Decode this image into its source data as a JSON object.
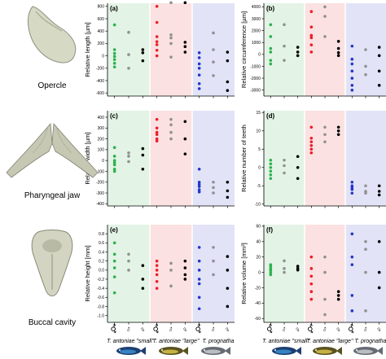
{
  "figure": {
    "bone_labels": [
      "Opercle",
      "Pharyngeal jaw",
      "Buccal cavity"
    ],
    "group_labels": [
      "T. antoniae \"small\"",
      "T. antoniae \"large\"",
      "T. prognatha"
    ],
    "column_symbols": [
      "⚥",
      "♂",
      "♀",
      "⚥",
      "♂",
      "♀",
      "⚥",
      "♂",
      "♀"
    ]
  },
  "colors": {
    "small_bg": "#e3f3e6",
    "large_bg": "#fbe1e1",
    "prog_bg": "#e2e3f6",
    "fg": "#000000",
    "immature": "#2bb24c",
    "male": "#909090",
    "female": "#000000",
    "large_immature": "#e8202b",
    "prog_immature": "#2436c8"
  },
  "chart_data": [
    {
      "id": "a",
      "type": "scatter",
      "panel_label": "(a)",
      "ylabel": "Relative length [µm]",
      "ylim": [
        -650,
        850
      ],
      "yticks": [
        "800",
        "600",
        "400",
        "200",
        "0",
        "-200",
        "-400",
        "-600"
      ],
      "series": [
        {
          "column": 1,
          "values": [
            500,
            100,
            40,
            -10,
            -60,
            -120,
            -180
          ]
        },
        {
          "column": 2,
          "values": [
            380,
            20,
            -200
          ]
        },
        {
          "column": 3,
          "values": [
            100,
            50,
            -80
          ]
        },
        {
          "column": 4,
          "values": [
            800,
            540,
            310,
            230,
            180,
            90,
            0
          ]
        },
        {
          "column": 5,
          "values": [
            860,
            340,
            290,
            200,
            -20
          ]
        },
        {
          "column": 6,
          "values": [
            860,
            220,
            150,
            60
          ]
        },
        {
          "column": 7,
          "values": [
            50,
            -30,
            -130,
            -200,
            -310,
            -450,
            -530
          ]
        },
        {
          "column": 8,
          "values": [
            370,
            100,
            -100,
            -320
          ]
        },
        {
          "column": 9,
          "values": [
            60,
            -80,
            -420,
            -560
          ]
        }
      ]
    },
    {
      "id": "b",
      "type": "scatter",
      "panel_label": "(b)",
      "ylabel": "Relative circumference [µm]",
      "ylim": [
        -3500,
        4300
      ],
      "yticks": [
        "4000",
        "3000",
        "2000",
        "1000",
        "0",
        "-1000",
        "-2000",
        "-3000"
      ],
      "series": [
        {
          "column": 1,
          "values": [
            2500,
            1500,
            500,
            200,
            -500,
            -800
          ]
        },
        {
          "column": 2,
          "values": [
            2500,
            700,
            -500
          ]
        },
        {
          "column": 3,
          "values": [
            600,
            200,
            -100
          ]
        },
        {
          "column": 4,
          "values": [
            3600,
            2300,
            1600,
            1400,
            800,
            200
          ]
        },
        {
          "column": 5,
          "values": [
            4000,
            3200,
            1500
          ]
        },
        {
          "column": 6,
          "values": [
            1100,
            500,
            150,
            -100
          ]
        },
        {
          "column": 7,
          "values": [
            700,
            -400,
            -800,
            -1400,
            -2000,
            -2600,
            -3000
          ]
        },
        {
          "column": 8,
          "values": [
            400,
            -1000,
            -1700
          ]
        },
        {
          "column": 9,
          "values": [
            600,
            -100,
            -1400,
            -2600
          ]
        }
      ]
    },
    {
      "id": "c",
      "type": "scatter",
      "panel_label": "(c)",
      "ylabel": "Relative width [µm]",
      "ylim": [
        -420,
        460
      ],
      "yticks": [
        "400",
        "300",
        "200",
        "100",
        "0",
        "-100",
        "-200",
        "-300",
        "-400"
      ],
      "series": [
        {
          "column": 1,
          "values": [
            120,
            40,
            0,
            -20,
            -40,
            -80,
            -100
          ]
        },
        {
          "column": 2,
          "values": [
            70,
            40,
            -10
          ]
        },
        {
          "column": 3,
          "values": [
            110,
            50,
            -80
          ]
        },
        {
          "column": 4,
          "values": [
            380,
            300,
            260,
            240,
            200,
            180
          ]
        },
        {
          "column": 5,
          "values": [
            380,
            330,
            260,
            200
          ]
        },
        {
          "column": 6,
          "values": [
            360,
            200,
            60
          ]
        },
        {
          "column": 7,
          "values": [
            -80,
            -200,
            -220,
            -240,
            -270,
            -290
          ]
        },
        {
          "column": 8,
          "values": [
            -200,
            -250,
            -300
          ]
        },
        {
          "column": 9,
          "values": [
            -200,
            -280,
            -340
          ]
        }
      ]
    },
    {
      "id": "d",
      "type": "scatter",
      "panel_label": "(d)",
      "ylabel": "Relative number of teeth",
      "ylim": [
        -10.5,
        15.5
      ],
      "yticks": [
        "15",
        "10",
        "5",
        "0",
        "-5",
        "-10"
      ],
      "series": [
        {
          "column": 1,
          "values": [
            2,
            1,
            0,
            -1,
            -2,
            -3
          ]
        },
        {
          "column": 2,
          "values": [
            2,
            0.5,
            -1.5
          ]
        },
        {
          "column": 3,
          "values": [
            3,
            0,
            -3
          ]
        },
        {
          "column": 4,
          "values": [
            11,
            8,
            7,
            6,
            5,
            4
          ]
        },
        {
          "column": 5,
          "values": [
            11,
            9,
            7
          ]
        },
        {
          "column": 6,
          "values": [
            11,
            10,
            9
          ]
        },
        {
          "column": 7,
          "values": [
            -4,
            -5,
            -5.5,
            -6,
            -7
          ]
        },
        {
          "column": 8,
          "values": [
            -5,
            -6.5,
            -7
          ]
        },
        {
          "column": 9,
          "values": [
            -5,
            -6.5,
            -7.5
          ]
        }
      ]
    },
    {
      "id": "e",
      "type": "scatter",
      "panel_label": "(e)",
      "ylabel": "Relative height [mm]",
      "ylim": [
        -1.15,
        1.0
      ],
      "yticks": [
        "0.8",
        "0.6",
        "0.4",
        "0.2",
        "0.0",
        "-0.2",
        "-0.4",
        "-0.6",
        "-0.8",
        "-1.0"
      ],
      "series": [
        {
          "column": 1,
          "values": [
            0.6,
            0.35,
            0.2,
            0.05,
            -0.15,
            -0.5
          ]
        },
        {
          "column": 2,
          "values": [
            0.35,
            0.2,
            0
          ]
        },
        {
          "column": 3,
          "values": [
            0.1,
            -0.2,
            -0.4
          ]
        },
        {
          "column": 4,
          "values": [
            0.2,
            0.1,
            0,
            -0.1,
            -0.25,
            -0.4
          ]
        },
        {
          "column": 5,
          "values": [
            0.15,
            0,
            -0.35
          ]
        },
        {
          "column": 6,
          "values": [
            0.2,
            0.05,
            -0.1,
            -0.2
          ]
        },
        {
          "column": 7,
          "values": [
            0.5,
            0.2,
            0,
            -0.2,
            -0.3,
            -0.6,
            -0.85
          ]
        },
        {
          "column": 8,
          "values": [
            0.5,
            0.2,
            -0.1
          ]
        },
        {
          "column": 9,
          "values": [
            0.3,
            0,
            -0.4,
            -0.8
          ]
        }
      ]
    },
    {
      "id": "f",
      "type": "scatter",
      "panel_label": "(f)",
      "ylabel": "Relative volume [mm³]",
      "ylim": [
        -65,
        62
      ],
      "yticks": [
        "60",
        "40",
        "20",
        "0",
        "-20",
        "-40",
        "-60"
      ],
      "series": [
        {
          "column": 1,
          "values": [
            10,
            8,
            5,
            3,
            0,
            -3
          ]
        },
        {
          "column": 2,
          "values": [
            15,
            5,
            0
          ]
        },
        {
          "column": 3,
          "values": [
            8,
            5,
            3
          ]
        },
        {
          "column": 4,
          "values": [
            20,
            5,
            -5,
            -15,
            -25,
            -35
          ]
        },
        {
          "column": 5,
          "values": [
            20,
            0,
            -35,
            -55
          ]
        },
        {
          "column": 6,
          "values": [
            -25,
            -30,
            -35
          ]
        },
        {
          "column": 7,
          "values": [
            50,
            20,
            10,
            -30,
            -50
          ]
        },
        {
          "column": 8,
          "values": [
            40,
            30,
            0,
            -50
          ]
        },
        {
          "column": 9,
          "values": [
            40,
            0,
            -20
          ]
        }
      ]
    }
  ]
}
